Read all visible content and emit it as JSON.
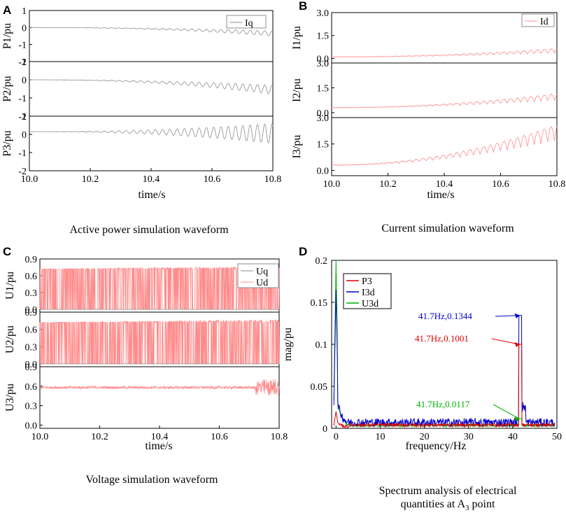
{
  "colors": {
    "gray": "#8c8c8c",
    "pink": "#ff8c8c",
    "red": "#e00000",
    "blue": "#0000cc",
    "green": "#00b000",
    "axis": "#000000"
  },
  "panels": [
    {
      "letter": "A",
      "caption": "Active power simulation waveform",
      "xlabel": "time/s",
      "xticks": [
        "10.0",
        "10.2",
        "10.4",
        "10.6",
        "10.8"
      ],
      "legend": [
        "Iq"
      ],
      "subplots": [
        {
          "ylabel": "P1/pu",
          "yticks": [
            "1",
            "0",
            "-1",
            "-2"
          ]
        },
        {
          "ylabel": "P2/pu",
          "yticks": [
            "1",
            "0",
            "-1",
            "-2"
          ]
        },
        {
          "ylabel": "P3/pu",
          "yticks": [
            "1",
            "0",
            "-1",
            "-2"
          ]
        }
      ]
    },
    {
      "letter": "B",
      "caption": "Current simulation waveform",
      "xlabel": "time/s",
      "xticks": [
        "10.0",
        "10.2",
        "10.4",
        "10.6",
        "10.8"
      ],
      "legend": [
        "Id"
      ],
      "subplots": [
        {
          "ylabel": "I1/pu",
          "yticks": [
            "3.0",
            "1.5",
            "0.0"
          ]
        },
        {
          "ylabel": "I2/pu",
          "yticks": [
            "3.0",
            "1.5",
            "0.0"
          ]
        },
        {
          "ylabel": "I3/pu",
          "yticks": [
            "3.0",
            "1.5",
            "0.0"
          ]
        }
      ]
    },
    {
      "letter": "C",
      "caption": "Voltage simulation waveform",
      "xlabel": "time/s",
      "xticks": [
        "10.0",
        "10.2",
        "10.4",
        "10.6",
        "10.8"
      ],
      "legend": [
        "Uq",
        "Ud"
      ],
      "subplots": [
        {
          "ylabel": "U1/pu",
          "yticks": [
            "0.9",
            "0.6",
            "0.3",
            "0.0"
          ]
        },
        {
          "ylabel": "U2/pu",
          "yticks": [
            "0.9",
            "0.6",
            "0.3",
            "0.0"
          ]
        },
        {
          "ylabel": "U3/pu",
          "yticks": [
            "0.9",
            "0.6",
            "0.3",
            "0.0"
          ]
        }
      ]
    },
    {
      "letter": "D",
      "caption_line1": "Spectrum analysis of electrical",
      "caption_line2_pre": "quantities at A",
      "caption_sub": "3",
      "caption_line2_post": " point",
      "xlabel": "frequency/Hz",
      "ylabel": "mag/pu",
      "xticks": [
        "0",
        "10",
        "20",
        "30",
        "40",
        "50"
      ],
      "yticks": [
        "0.2",
        "0.15",
        "0.1",
        "0.05",
        "0"
      ],
      "legend": [
        "P3",
        "I3d",
        "U3d"
      ],
      "annotations": [
        "41.7Hz,0.1344",
        "41.7Hz,0.1001",
        "41.7Hz,0.0117"
      ]
    }
  ],
  "chart_data": [
    {
      "type": "line",
      "title": "Active power simulation waveform",
      "xlabel": "time/s",
      "xlim": [
        10.0,
        10.8
      ],
      "ylim": [
        -2,
        1
      ],
      "series_name": "Iq",
      "subplots": [
        {
          "ylabel": "P1/pu",
          "base": 0,
          "amp_end": 0.15,
          "drift_end": -0.35,
          "freq_hz": 41.7
        },
        {
          "ylabel": "P2/pu",
          "base": 0,
          "amp_end": 0.25,
          "drift_end": -0.55,
          "freq_hz": 41.7
        },
        {
          "ylabel": "P3/pu",
          "base": 0.15,
          "amp_end": 0.55,
          "drift_end": -0.1,
          "freq_hz": 41.7
        }
      ]
    },
    {
      "type": "line",
      "title": "Current simulation waveform",
      "xlabel": "time/s",
      "xlim": [
        10.0,
        10.8
      ],
      "ylim": [
        -0.3,
        3.0
      ],
      "series_name": "Id",
      "subplots": [
        {
          "ylabel": "I1/pu",
          "base": 0.1,
          "amp_end": 0.3,
          "rise_end": 0.25,
          "freq_hz": 41.7
        },
        {
          "ylabel": "I2/pu",
          "base": 0.3,
          "amp_end": 0.4,
          "rise_end": 0.45,
          "freq_hz": 41.7
        },
        {
          "ylabel": "I3/pu",
          "base": 0.3,
          "amp_end": 0.9,
          "rise_end": 1.4,
          "freq_hz": 41.7
        }
      ]
    },
    {
      "type": "line",
      "title": "Voltage simulation waveform",
      "xlabel": "time/s",
      "xlim": [
        10.0,
        10.8
      ],
      "ylim": [
        -0.05,
        0.9
      ],
      "series": [
        "Uq",
        "Ud"
      ],
      "subplots": [
        {
          "ylabel": "U1/pu",
          "mode": "switching",
          "high": 0.72,
          "low": 0.0
        },
        {
          "ylabel": "U2/pu",
          "mode": "switching",
          "high": 0.72,
          "low": 0.0
        },
        {
          "ylabel": "U3/pu",
          "mode": "noisy",
          "level": 0.58
        }
      ]
    },
    {
      "type": "line",
      "title": "Spectrum analysis of electrical quantities at A3 point",
      "xlabel": "frequency/Hz",
      "ylabel": "mag/pu",
      "xlim": [
        -1,
        50
      ],
      "ylim": [
        0,
        0.2
      ],
      "series": [
        {
          "name": "P3",
          "peak_hz": 41.7,
          "peak_mag": 0.1001,
          "dc_mag": 0.02
        },
        {
          "name": "I3d",
          "peak_hz": 41.7,
          "peak_mag": 0.1344,
          "dc_mag": 0.165
        },
        {
          "name": "U3d",
          "peak_hz": 41.7,
          "peak_mag": 0.0117,
          "dc_mag": 0.2
        }
      ]
    }
  ]
}
